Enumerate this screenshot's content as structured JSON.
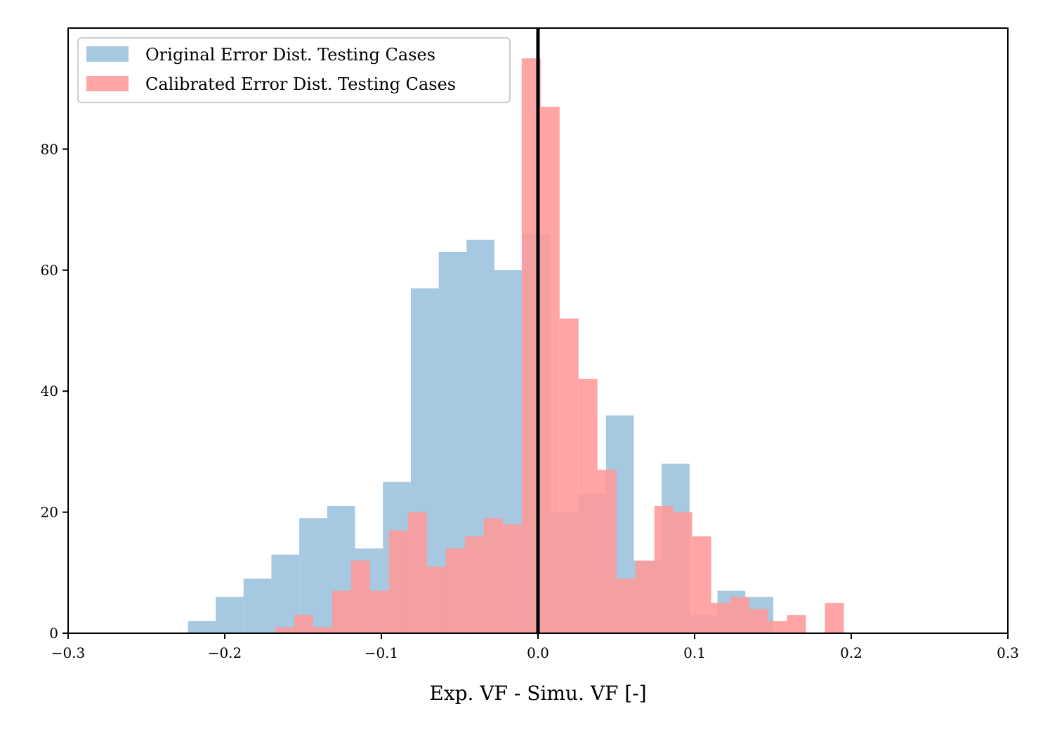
{
  "chart_data": {
    "type": "histogram",
    "xlabel": "Exp. VF - Simu. VF [-]",
    "ylabel": "",
    "xlim": [
      -0.3,
      0.3
    ],
    "ylim": [
      0,
      100
    ],
    "xticks": [
      -0.3,
      -0.2,
      -0.1,
      0.0,
      0.1,
      0.2,
      0.3
    ],
    "xtick_labels": [
      "−0.3",
      "−0.2",
      "−0.1",
      "0.0",
      "0.1",
      "0.2",
      "0.3"
    ],
    "yticks": [
      0,
      20,
      40,
      60,
      80
    ],
    "ytick_labels": [
      "0",
      "20",
      "40",
      "60",
      "80"
    ],
    "vline_x": 0.0,
    "legend_position": "upper-left",
    "series": [
      {
        "name": "Original Error Dist. Testing Cases",
        "color": "#a6c8e0",
        "bins": [
          [
            -0.2235,
            -0.2058,
            2
          ],
          [
            -0.2058,
            -0.188,
            6
          ],
          [
            -0.188,
            -0.1702,
            9
          ],
          [
            -0.1702,
            -0.1524,
            13
          ],
          [
            -0.1524,
            -0.1346,
            19
          ],
          [
            -0.1346,
            -0.1168,
            21
          ],
          [
            -0.1168,
            -0.099,
            14
          ],
          [
            -0.099,
            -0.0812,
            25
          ],
          [
            -0.0812,
            -0.0634,
            57
          ],
          [
            -0.0634,
            -0.0456,
            63
          ],
          [
            -0.0456,
            -0.0278,
            65
          ],
          [
            -0.0278,
            -0.01,
            60
          ],
          [
            -0.01,
            0.0078,
            66
          ],
          [
            0.0078,
            0.0256,
            20
          ],
          [
            0.0256,
            0.0434,
            23
          ],
          [
            0.0434,
            0.0612,
            36
          ],
          [
            0.0612,
            0.079,
            12
          ],
          [
            0.079,
            0.0968,
            28
          ],
          [
            0.0968,
            0.1146,
            3
          ],
          [
            0.1146,
            0.1324,
            7
          ],
          [
            0.1324,
            0.1502,
            6
          ]
        ]
      },
      {
        "name": "Calibrated Error Dist. Testing Cases",
        "color": "#ff9999",
        "bins": [
          [
            -0.1677,
            -0.1556,
            1
          ],
          [
            -0.1556,
            -0.1435,
            3
          ],
          [
            -0.1435,
            -0.1314,
            1
          ],
          [
            -0.1314,
            -0.1193,
            7
          ],
          [
            -0.1193,
            -0.1072,
            12
          ],
          [
            -0.1072,
            -0.0951,
            7
          ],
          [
            -0.0951,
            -0.083,
            17
          ],
          [
            -0.083,
            -0.0709,
            20
          ],
          [
            -0.0709,
            -0.0588,
            11
          ],
          [
            -0.0588,
            -0.0467,
            14
          ],
          [
            -0.0467,
            -0.0346,
            16
          ],
          [
            -0.0346,
            -0.0225,
            19
          ],
          [
            -0.0225,
            -0.0104,
            18
          ],
          [
            -0.0104,
            0.0017,
            95
          ],
          [
            0.0017,
            0.0138,
            87
          ],
          [
            0.0138,
            0.0259,
            52
          ],
          [
            0.0259,
            0.038,
            42
          ],
          [
            0.038,
            0.0501,
            27
          ],
          [
            0.0501,
            0.0622,
            9
          ],
          [
            0.0622,
            0.0743,
            12
          ],
          [
            0.0743,
            0.0864,
            21
          ],
          [
            0.0864,
            0.0985,
            20
          ],
          [
            0.0985,
            0.1106,
            16
          ],
          [
            0.1106,
            0.1227,
            5
          ],
          [
            0.1227,
            0.1348,
            6
          ],
          [
            0.1348,
            0.1469,
            4
          ],
          [
            0.1469,
            0.159,
            2
          ],
          [
            0.159,
            0.1711,
            3
          ],
          [
            0.1711,
            0.1832,
            0
          ],
          [
            0.1832,
            0.1953,
            5
          ]
        ]
      }
    ]
  }
}
